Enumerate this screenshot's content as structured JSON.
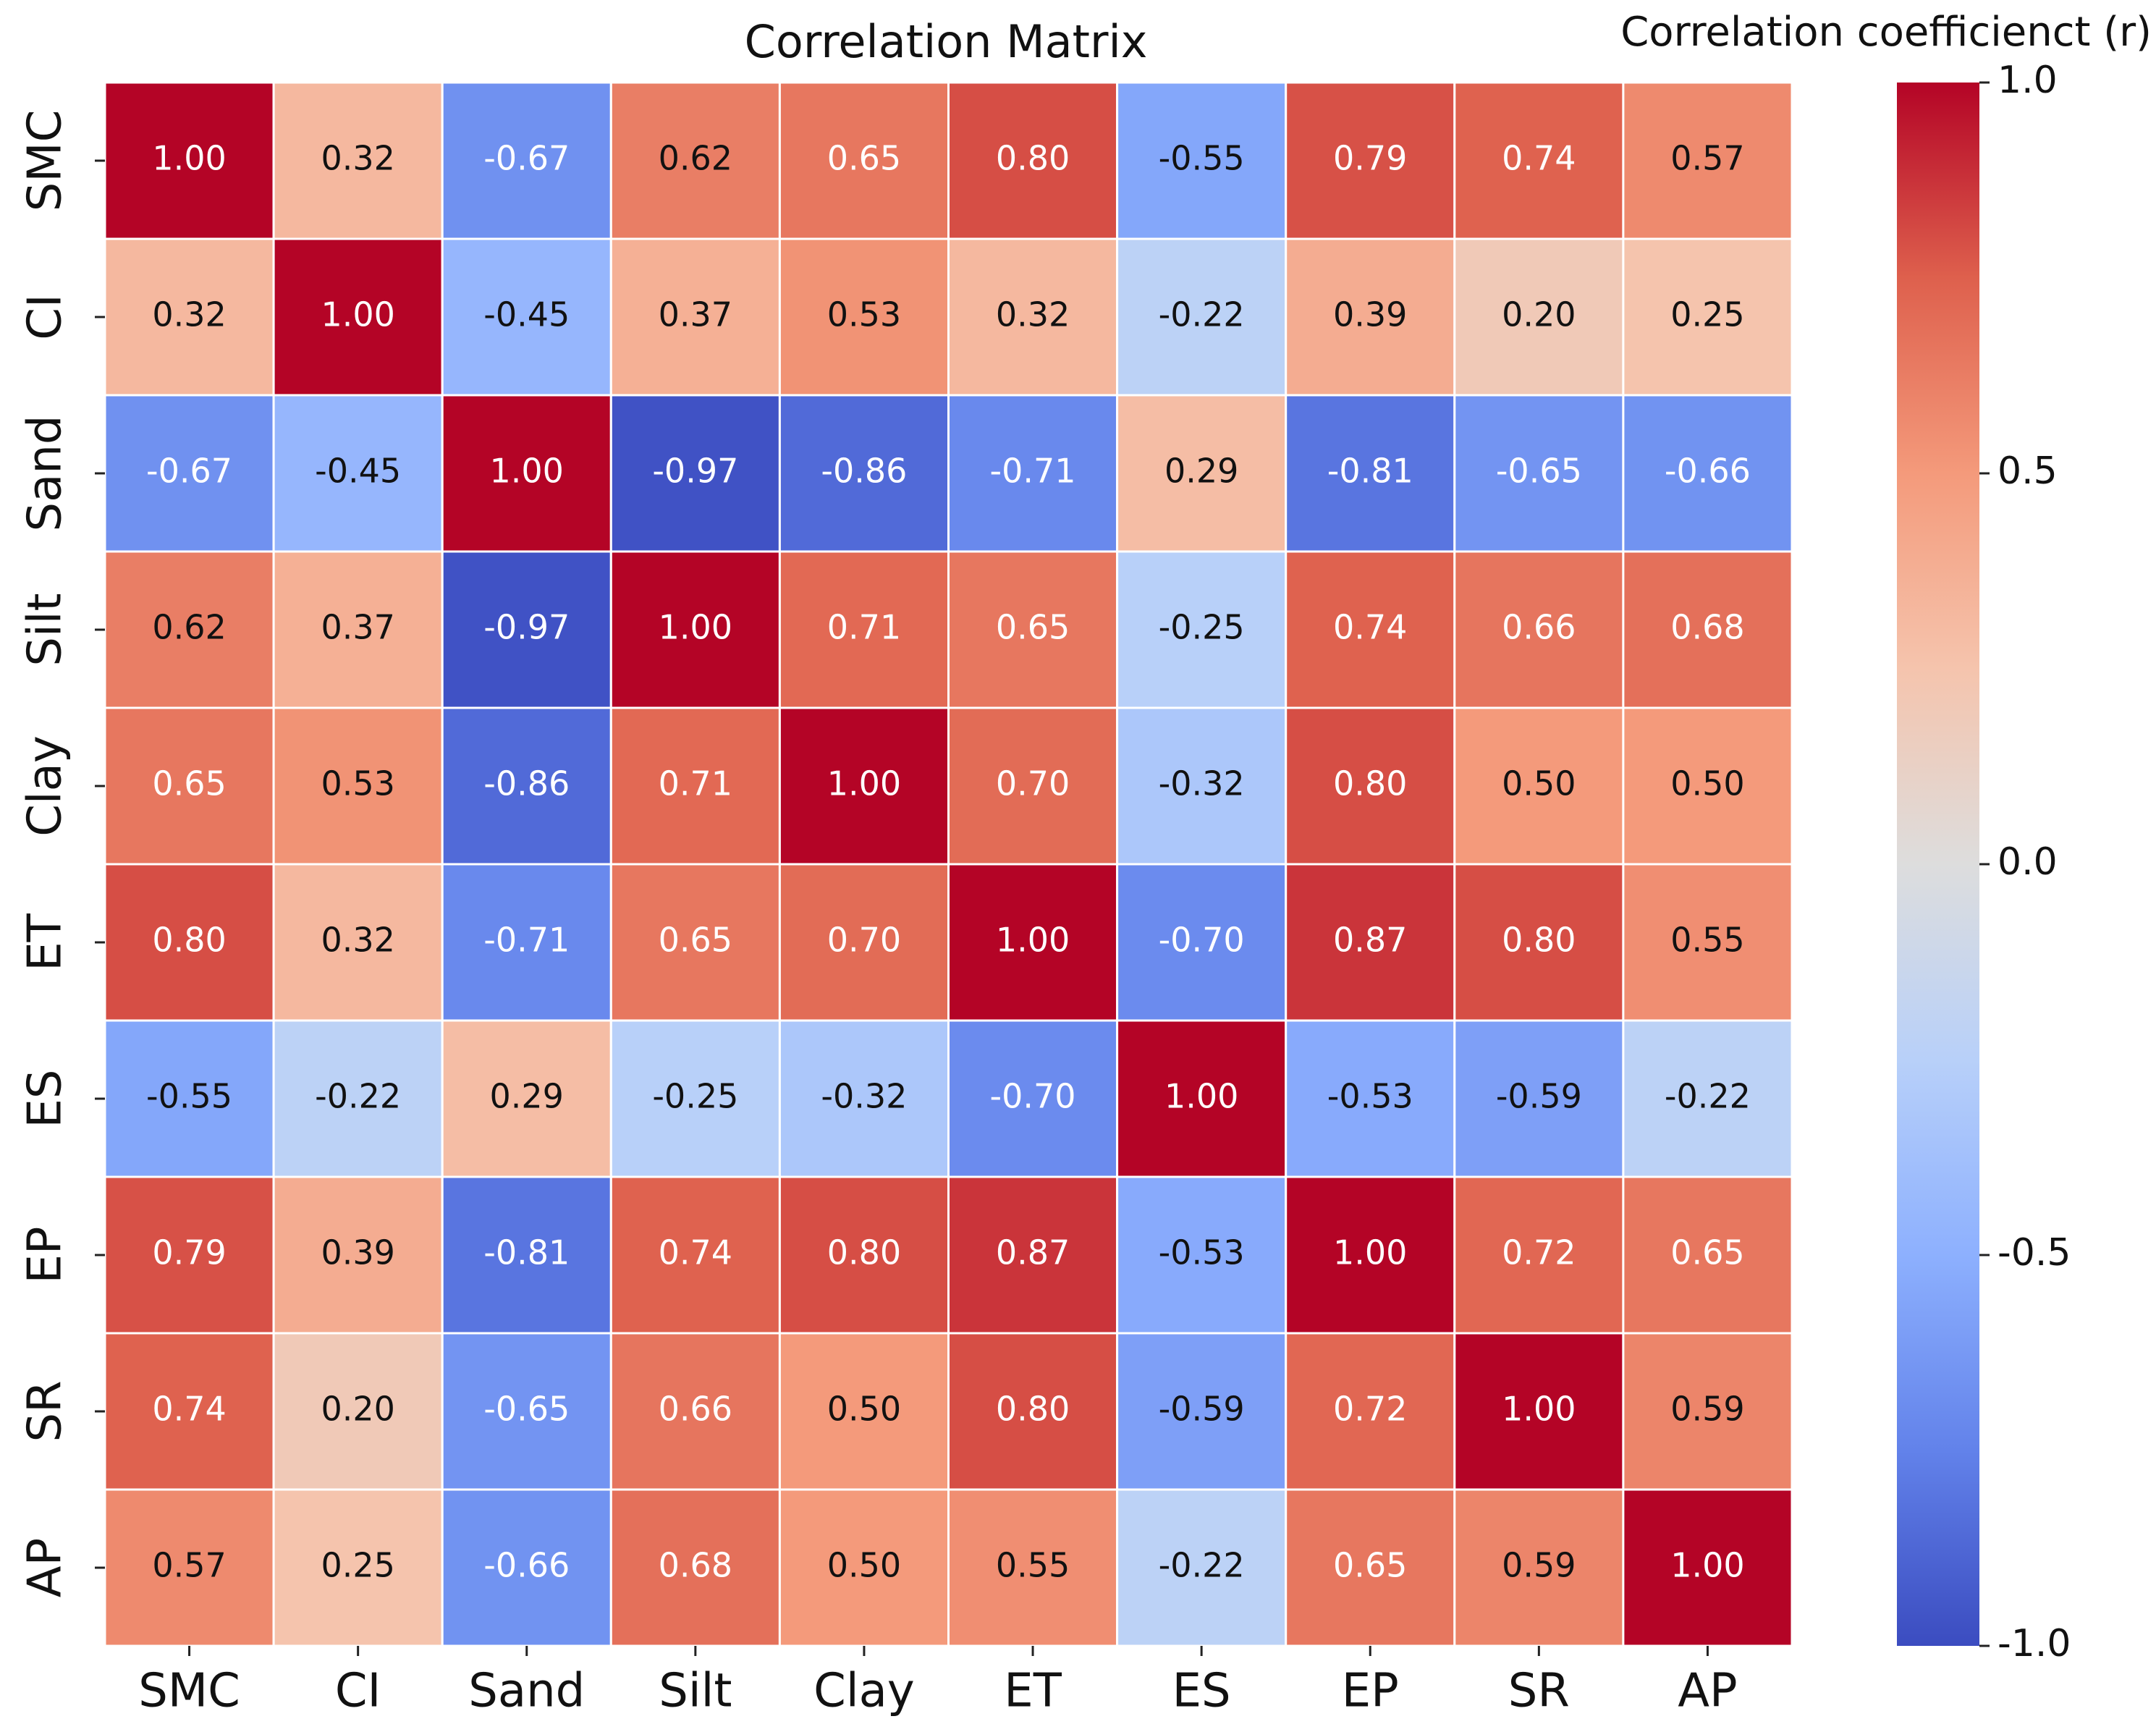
{
  "chart_data": {
    "type": "heatmap",
    "title": "Correlation Matrix",
    "x_categories": [
      "SMC",
      "CI",
      "Sand",
      "Silt",
      "Clay",
      "ET",
      "ES",
      "EP",
      "SR",
      "AP"
    ],
    "y_categories": [
      "SMC",
      "CI",
      "Sand",
      "Silt",
      "Clay",
      "ET",
      "ES",
      "EP",
      "SR",
      "AP"
    ],
    "values": [
      [
        1.0,
        0.32,
        -0.67,
        0.62,
        0.65,
        0.8,
        -0.55,
        0.79,
        0.74,
        0.57
      ],
      [
        0.32,
        1.0,
        -0.45,
        0.37,
        0.53,
        0.32,
        -0.22,
        0.39,
        0.2,
        0.25
      ],
      [
        -0.67,
        -0.45,
        1.0,
        -0.97,
        -0.86,
        -0.71,
        0.29,
        -0.81,
        -0.65,
        -0.66
      ],
      [
        0.62,
        0.37,
        -0.97,
        1.0,
        0.71,
        0.65,
        -0.25,
        0.74,
        0.66,
        0.68
      ],
      [
        0.65,
        0.53,
        -0.86,
        0.71,
        1.0,
        0.7,
        -0.32,
        0.8,
        0.5,
        0.5
      ],
      [
        0.8,
        0.32,
        -0.71,
        0.65,
        0.7,
        1.0,
        -0.7,
        0.87,
        0.8,
        0.55
      ],
      [
        -0.55,
        -0.22,
        0.29,
        -0.25,
        -0.32,
        -0.7,
        1.0,
        -0.53,
        -0.59,
        -0.22
      ],
      [
        0.79,
        0.39,
        -0.81,
        0.74,
        0.8,
        0.87,
        -0.53,
        1.0,
        0.72,
        0.65
      ],
      [
        0.74,
        0.2,
        -0.65,
        0.66,
        0.5,
        0.8,
        -0.59,
        0.72,
        1.0,
        0.59
      ],
      [
        0.57,
        0.25,
        -0.66,
        0.68,
        0.5,
        0.55,
        -0.22,
        0.65,
        0.59,
        1.0
      ]
    ],
    "value_labels": [
      [
        "1.00",
        "0.32",
        "-0.67",
        "0.62",
        "0.65",
        "0.80",
        "-0.55",
        "0.79",
        "0.74",
        "0.57"
      ],
      [
        "0.32",
        "1.00",
        "-0.45",
        "0.37",
        "0.53",
        "0.32",
        "-0.22",
        "0.39",
        "0.20",
        "0.25"
      ],
      [
        "-0.67",
        "-0.45",
        "1.00",
        "-0.97",
        "-0.86",
        "-0.71",
        "0.29",
        "-0.81",
        "-0.65",
        "-0.66"
      ],
      [
        "0.62",
        "0.37",
        "-0.97",
        "1.00",
        "0.71",
        "0.65",
        "-0.25",
        "0.74",
        "0.66",
        "0.68"
      ],
      [
        "0.65",
        "0.53",
        "-0.86",
        "0.71",
        "1.00",
        "0.70",
        "-0.32",
        "0.80",
        "0.50",
        "0.50"
      ],
      [
        "0.80",
        "0.32",
        "-0.71",
        "0.65",
        "0.70",
        "1.00",
        "-0.70",
        "0.87",
        "0.80",
        "0.55"
      ],
      [
        "-0.55",
        "-0.22",
        "0.29",
        "-0.25",
        "-0.32",
        "-0.70",
        "1.00",
        "-0.53",
        "-0.59",
        "-0.22"
      ],
      [
        "0.79",
        "0.39",
        "-0.81",
        "0.74",
        "0.80",
        "0.87",
        "-0.53",
        "1.00",
        "0.72",
        "0.65"
      ],
      [
        "0.74",
        "0.20",
        "-0.65",
        "0.66",
        "0.50",
        "0.80",
        "-0.59",
        "0.72",
        "1.00",
        "0.59"
      ],
      [
        "0.57",
        "0.25",
        "-0.66",
        "0.68",
        "0.50",
        "0.55",
        "-0.22",
        "0.65",
        "0.59",
        "1.00"
      ]
    ],
    "colormap": [
      "#3b4cc0",
      "#6282ea",
      "#8db0fe",
      "#b8d0f9",
      "#dddddd",
      "#f5c4ad",
      "#f49a7b",
      "#de604d",
      "#b40426"
    ],
    "clim": [
      -1,
      1
    ],
    "cticks": [
      {
        "value": 1,
        "label": "1.0"
      },
      0.5,
      {
        "value": 0,
        "label": "0.0"
      },
      -0.5,
      {
        "value": -1,
        "label": "-1.0"
      }
    ],
    "colorbar_label": "Correlation coefficienct (r)"
  }
}
